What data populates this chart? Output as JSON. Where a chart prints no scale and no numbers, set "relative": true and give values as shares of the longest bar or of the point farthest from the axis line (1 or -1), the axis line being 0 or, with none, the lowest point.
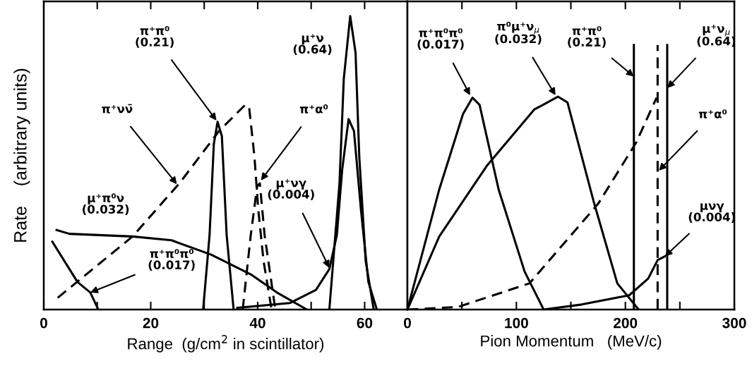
{
  "chart_data": [
    {
      "type": "line",
      "relative": true,
      "xlabel": "Range  (g/cm$^{2}$ in scintillator)",
      "ylabel": "Rate    (arbitrary units)",
      "xlim": [
        0,
        68
      ],
      "xticks": [
        0,
        {
          "value": 10,
          "label": null
        },
        20,
        {
          "value": 30,
          "label": null
        },
        40,
        {
          "value": 50,
          "label": null
        },
        60
      ],
      "tick_labels": "x",
      "grid": false,
      "legend": false,
      "marker": "none",
      "series": [
        {
          "color": "#000000",
          "line_style": "solid",
          "x": [
            53.4,
            55.3,
            56.1,
            57.3,
            58.3,
            59.0,
            60.2,
            61.7
          ],
          "values": [
            0,
            0.431,
            0.786,
            1.0,
            0.875,
            0.52,
            0.165,
            0
          ]
        },
        {
          "color": "#000000",
          "line_style": "solid",
          "x": [
            36.2,
            46.0,
            50.9,
            53.4,
            54.8,
            55.8,
            57.0,
            58.0,
            59.3,
            60.7,
            62.2
          ],
          "values": [
            0.006,
            0.022,
            0.067,
            0.138,
            0.253,
            0.476,
            0.649,
            0.609,
            0.342,
            0.094,
            0.005
          ]
        },
        {
          "color": "#000000",
          "line_style": "solid",
          "x": [
            29.8,
            31.0,
            31.8,
            32.5,
            33.3,
            34.2,
            35.5
          ],
          "values": [
            0,
            0.253,
            0.564,
            0.64,
            0.591,
            0.253,
            0
          ]
        },
        {
          "color": "#000000",
          "line_style": "dashed",
          "x": [
            2.6,
            16.6,
            25.4,
            32.8,
            37.7,
            38.4,
            39.4,
            40.1,
            41.1,
            42.6
          ],
          "values": [
            0.04,
            0.249,
            0.431,
            0.609,
            0.698,
            0.689,
            0.52,
            0.342,
            0.165,
            0
          ]
        },
        {
          "color": "#000000",
          "line_style": "dashed",
          "x": [
            37.2,
            38.7,
            39.9,
            40.4,
            41.3,
            43.3
          ],
          "values": [
            0,
            0.253,
            0.42,
            0.43,
            0.253,
            0
          ]
        },
        {
          "color": "#000000",
          "line_style": "solid",
          "x": [
            2.4,
            4.8,
            16.6,
            23.9,
            31.3,
            38.7,
            43.6,
            49.2
          ],
          "values": [
            0.271,
            0.258,
            0.249,
            0.236,
            0.187,
            0.12,
            0.058,
            0
          ]
        },
        {
          "color": "#000000",
          "line_style": "solid",
          "x": [
            1.6,
            6.3,
            8.7,
            10.2
          ],
          "values": [
            0.231,
            0.094,
            0.058,
            0
          ]
        }
      ],
      "annotations": [
        {
          "text": "π⁺π⁰\n(0.21)",
          "x": 32.3,
          "y": 0.644
        },
        "μ⁺ν\n(0.64)",
        {
          "text": "π⁺νν̄",
          "x": 24.9,
          "y": 0.427
        },
        {
          "text": "π⁺α⁰",
          "x": 40.6,
          "y": 0.44
        },
        {
          "text": "μ⁺π⁰ν\n(0.032)",
          "x": 2.4,
          "y": 0.271
        },
        {
          "text": "μ⁺νγ\n(0.004)",
          "x": 53.4,
          "y": 0.142
        },
        {
          "text": "π⁺π⁰π⁰\n(0.017)",
          "x": 8.7,
          "y": 0.058
        }
      ]
    },
    {
      "type": "line",
      "relative": true,
      "xlabel": "Pion Momentum   (MeV/c)",
      "xlim": [
        0,
        300
      ],
      "xticks": [
        0,
        {
          "value": 50,
          "label": null
        },
        100,
        {
          "value": 150,
          "label": null
        },
        200,
        {
          "value": 250,
          "label": null
        },
        300
      ],
      "tick_labels": "x",
      "grid": false,
      "legend": false,
      "marker": "none",
      "series": [
        {
          "color": "#000000",
          "line_style": "solid",
          "x": [
            0,
            29.2,
            51,
            59.7,
            66.2,
            83.7,
            107.6,
            125
          ],
          "values": [
            0,
            0.454,
            0.739,
            0.801,
            0.774,
            0.454,
            0.143,
            0
          ]
        },
        {
          "color": "#000000",
          "line_style": "solid",
          "x": [
            0,
            29.2,
            72.8,
            116.3,
            138.1,
            146.9,
            170.8,
            192.6,
            212.2
          ],
          "values": [
            0,
            0.276,
            0.543,
            0.756,
            0.805,
            0.783,
            0.41,
            0.099,
            0
          ]
        },
        {
          "color": "#000000",
          "line_style": "dashed",
          "x": [
            0,
            46.6,
            112,
            175.2,
            210,
            228.6
          ],
          "values": [
            0,
            0.01,
            0.099,
            0.401,
            0.632,
            0.801
          ]
        },
        {
          "color": "#000000",
          "line_style": "solid",
          "x": [
            207.8,
            207.8
          ],
          "values": [
            0,
            1.0
          ]
        },
        {
          "color": "#000000",
          "line_style": "dashed",
          "x": [
            229.6,
            229.6
          ],
          "values": [
            0,
            1.0
          ]
        },
        {
          "color": "#000000",
          "line_style": "solid",
          "x": [
            238.4,
            238.4
          ],
          "values": [
            0,
            1.0
          ]
        },
        {
          "color": "#000000",
          "line_style": "solid",
          "x": [
            125,
            159.9,
            203.5,
            220.9,
            229.6,
            236.2
          ],
          "values": [
            0,
            0.019,
            0.054,
            0.117,
            0.187,
            0.201
          ]
        }
      ],
      "annotations": [
        {
          "text": "π⁺π⁰π⁰\n(0.017)",
          "x": 57.5,
          "y": 0.81
        },
        {
          "text": "π⁰μ⁺ν$_{μ}$\n(0.032)",
          "x": 135.9,
          "y": 0.81
        },
        {
          "text": "π⁺π⁰\n(0.21)",
          "x": 207.8,
          "y": 0.881
        },
        {
          "text": "μ⁺ν$_{μ}$\n(0.64)",
          "x": 238.4,
          "y": 0.837
        },
        {
          "text": "π⁺α⁰",
          "x": 230.7,
          "y": 0.525
        },
        {
          "text": "μνγ\n(0.004)",
          "x": 236.2,
          "y": 0.201
        }
      ]
    }
  ]
}
